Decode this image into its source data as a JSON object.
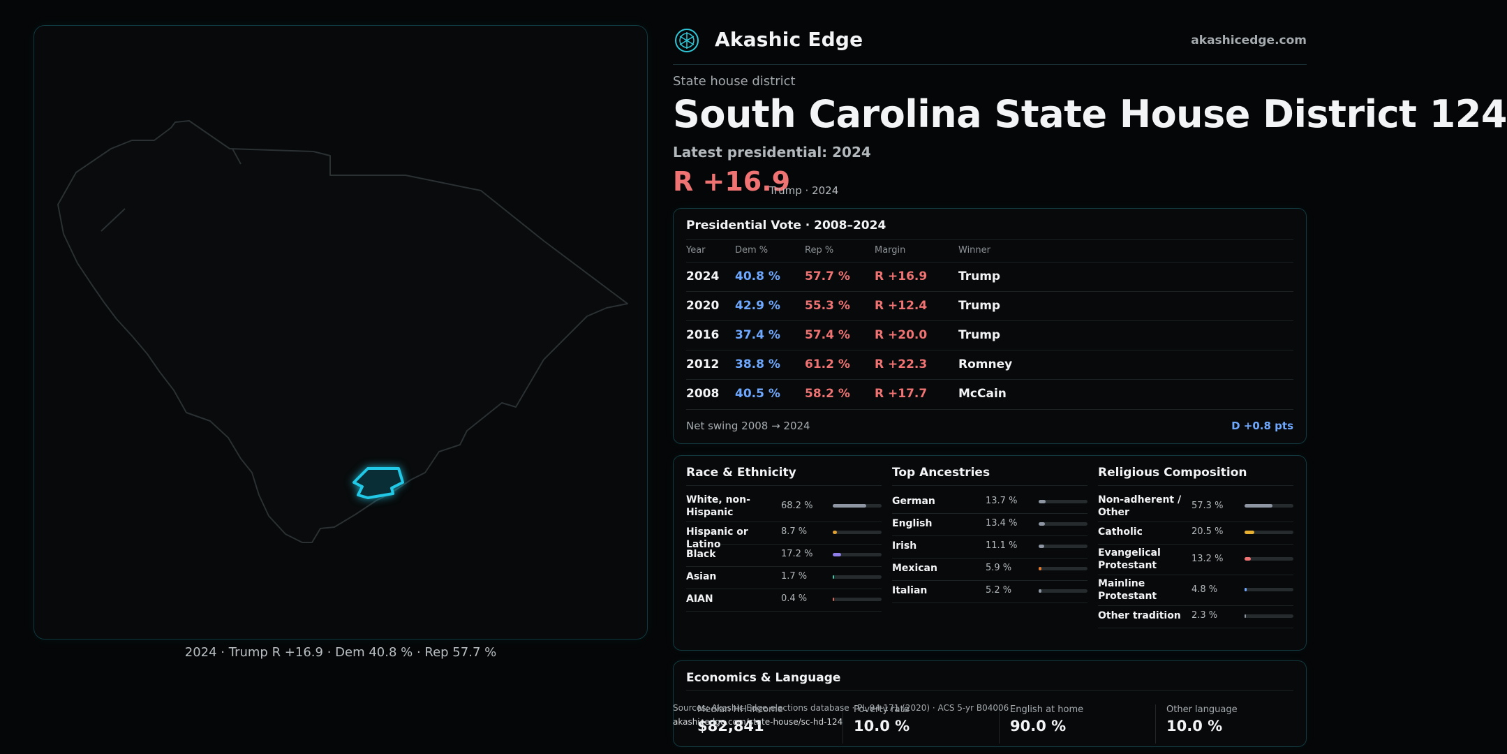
{
  "brand": {
    "name": "Akashic Edge",
    "url": "akashicedge.com"
  },
  "district": {
    "kind": "State house district",
    "title": "South Carolina State House District 124",
    "latest_label": "Latest presidential: 2024",
    "margin": "R +16.9",
    "margin_sub": "Trump · 2024"
  },
  "map": {
    "caption": "2024 · Trump R +16.9 · Dem 40.8 % · Rep 57.7 %",
    "highlight_color": "#21c9e6"
  },
  "presidential": {
    "title": "Presidential Vote · 2008–2024",
    "headers": {
      "year": "Year",
      "dem": "Dem %",
      "rep": "Rep %",
      "margin": "Margin",
      "winner": "Winner"
    },
    "rows": [
      {
        "year": "2024",
        "dem": "40.8 %",
        "rep": "57.7 %",
        "margin": "R +16.9",
        "winner": "Trump"
      },
      {
        "year": "2020",
        "dem": "42.9 %",
        "rep": "55.3 %",
        "margin": "R +12.4",
        "winner": "Trump"
      },
      {
        "year": "2016",
        "dem": "37.4 %",
        "rep": "57.4 %",
        "margin": "R +20.0",
        "winner": "Trump"
      },
      {
        "year": "2012",
        "dem": "38.8 %",
        "rep": "61.2 %",
        "margin": "R +22.3",
        "winner": "Romney"
      },
      {
        "year": "2008",
        "dem": "40.5 %",
        "rep": "58.2 %",
        "margin": "R +17.7",
        "winner": "McCain"
      }
    ],
    "swing_label": "Net swing 2008 → 2024",
    "swing_value": "D +0.8 pts"
  },
  "race": {
    "title": "Race & Ethnicity",
    "items": [
      {
        "label": "White, non-Hispanic",
        "value": "68.2 %",
        "pct": 68.2,
        "color": "#8e96a3"
      },
      {
        "label": "Hispanic or Latino",
        "value": "8.7 %",
        "pct": 8.7,
        "color": "#e0a030"
      },
      {
        "label": "Black",
        "value": "17.2 %",
        "pct": 17.2,
        "color": "#8f7ee8"
      },
      {
        "label": "Asian",
        "value": "1.7 %",
        "pct": 1.7,
        "color": "#3ec9a8"
      },
      {
        "label": "AIAN",
        "value": "0.4 %",
        "pct": 0.4,
        "color": "#d46a5a"
      }
    ]
  },
  "ancestry": {
    "title": "Top Ancestries",
    "items": [
      {
        "label": "German",
        "value": "13.7 %",
        "pct": 13.7,
        "color": "#8e96a3"
      },
      {
        "label": "English",
        "value": "13.4 %",
        "pct": 13.4,
        "color": "#8e96a3"
      },
      {
        "label": "Irish",
        "value": "11.1 %",
        "pct": 11.1,
        "color": "#8e96a3"
      },
      {
        "label": "Mexican",
        "value": "5.9 %",
        "pct": 5.9,
        "color": "#e07b30"
      },
      {
        "label": "Italian",
        "value": "5.2 %",
        "pct": 5.2,
        "color": "#8e96a3"
      }
    ]
  },
  "religion": {
    "title": "Religious Composition",
    "items": [
      {
        "label": "Non-adherent / Other",
        "value": "57.3 %",
        "pct": 57.3,
        "color": "#8e96a3"
      },
      {
        "label": "Catholic",
        "value": "20.5 %",
        "pct": 20.5,
        "color": "#e8b030"
      },
      {
        "label": "Evangelical Protestant",
        "value": "13.2 %",
        "pct": 13.2,
        "color": "#f07373"
      },
      {
        "label": "Mainline Protestant",
        "value": "4.8 %",
        "pct": 4.8,
        "color": "#6ea8ff"
      },
      {
        "label": "Other tradition",
        "value": "2.3 %",
        "pct": 2.3,
        "color": "#8e96a3"
      }
    ]
  },
  "economics": {
    "title": "Economics & Language",
    "stats": [
      {
        "label": "Median HH income",
        "value": "$82,841"
      },
      {
        "label": "Poverty rate",
        "value": "10.0 %"
      },
      {
        "label": "English at home",
        "value": "90.0 %"
      },
      {
        "label": "Other language",
        "value": "10.0 %"
      }
    ]
  },
  "source": {
    "text": "Sources: Akashic Edge elections database · PL 94-171 (2020) · ACS 5-yr B04006",
    "url": "akashicedge.com/state-house/sc-hd-124"
  }
}
